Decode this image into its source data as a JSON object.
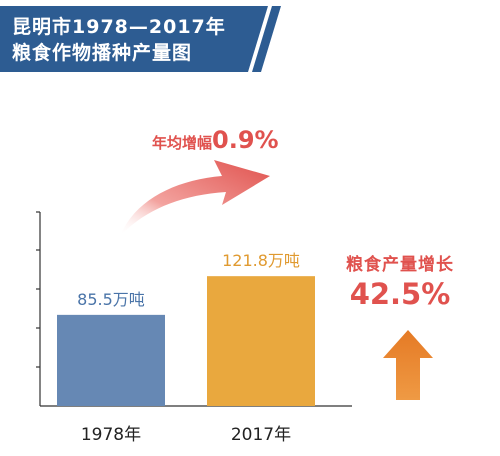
{
  "title": {
    "line1": "昆明市1978—2017年",
    "line2": "粮食作物播种产量图"
  },
  "chart_data": {
    "type": "bar",
    "categories": [
      "1978年",
      "2017年"
    ],
    "values": [
      85.5,
      121.8
    ],
    "value_labels": [
      "85.5万吨",
      "121.8万吨"
    ],
    "bar_colors": [
      "#6688b4",
      "#e9a83e"
    ],
    "label_colors": [
      "#4a74a8",
      "#e09a30"
    ],
    "ylim": [
      0,
      182
    ],
    "grid": false,
    "annotations": {
      "rate_text": "年均增幅",
      "rate_value": "0.9%",
      "growth_text": "粮食产量增长",
      "growth_value": "42.5%"
    }
  },
  "colors": {
    "banner": "#2d5c92",
    "accent_red": "#e0524e",
    "arrow_orange": "#e57a25"
  }
}
